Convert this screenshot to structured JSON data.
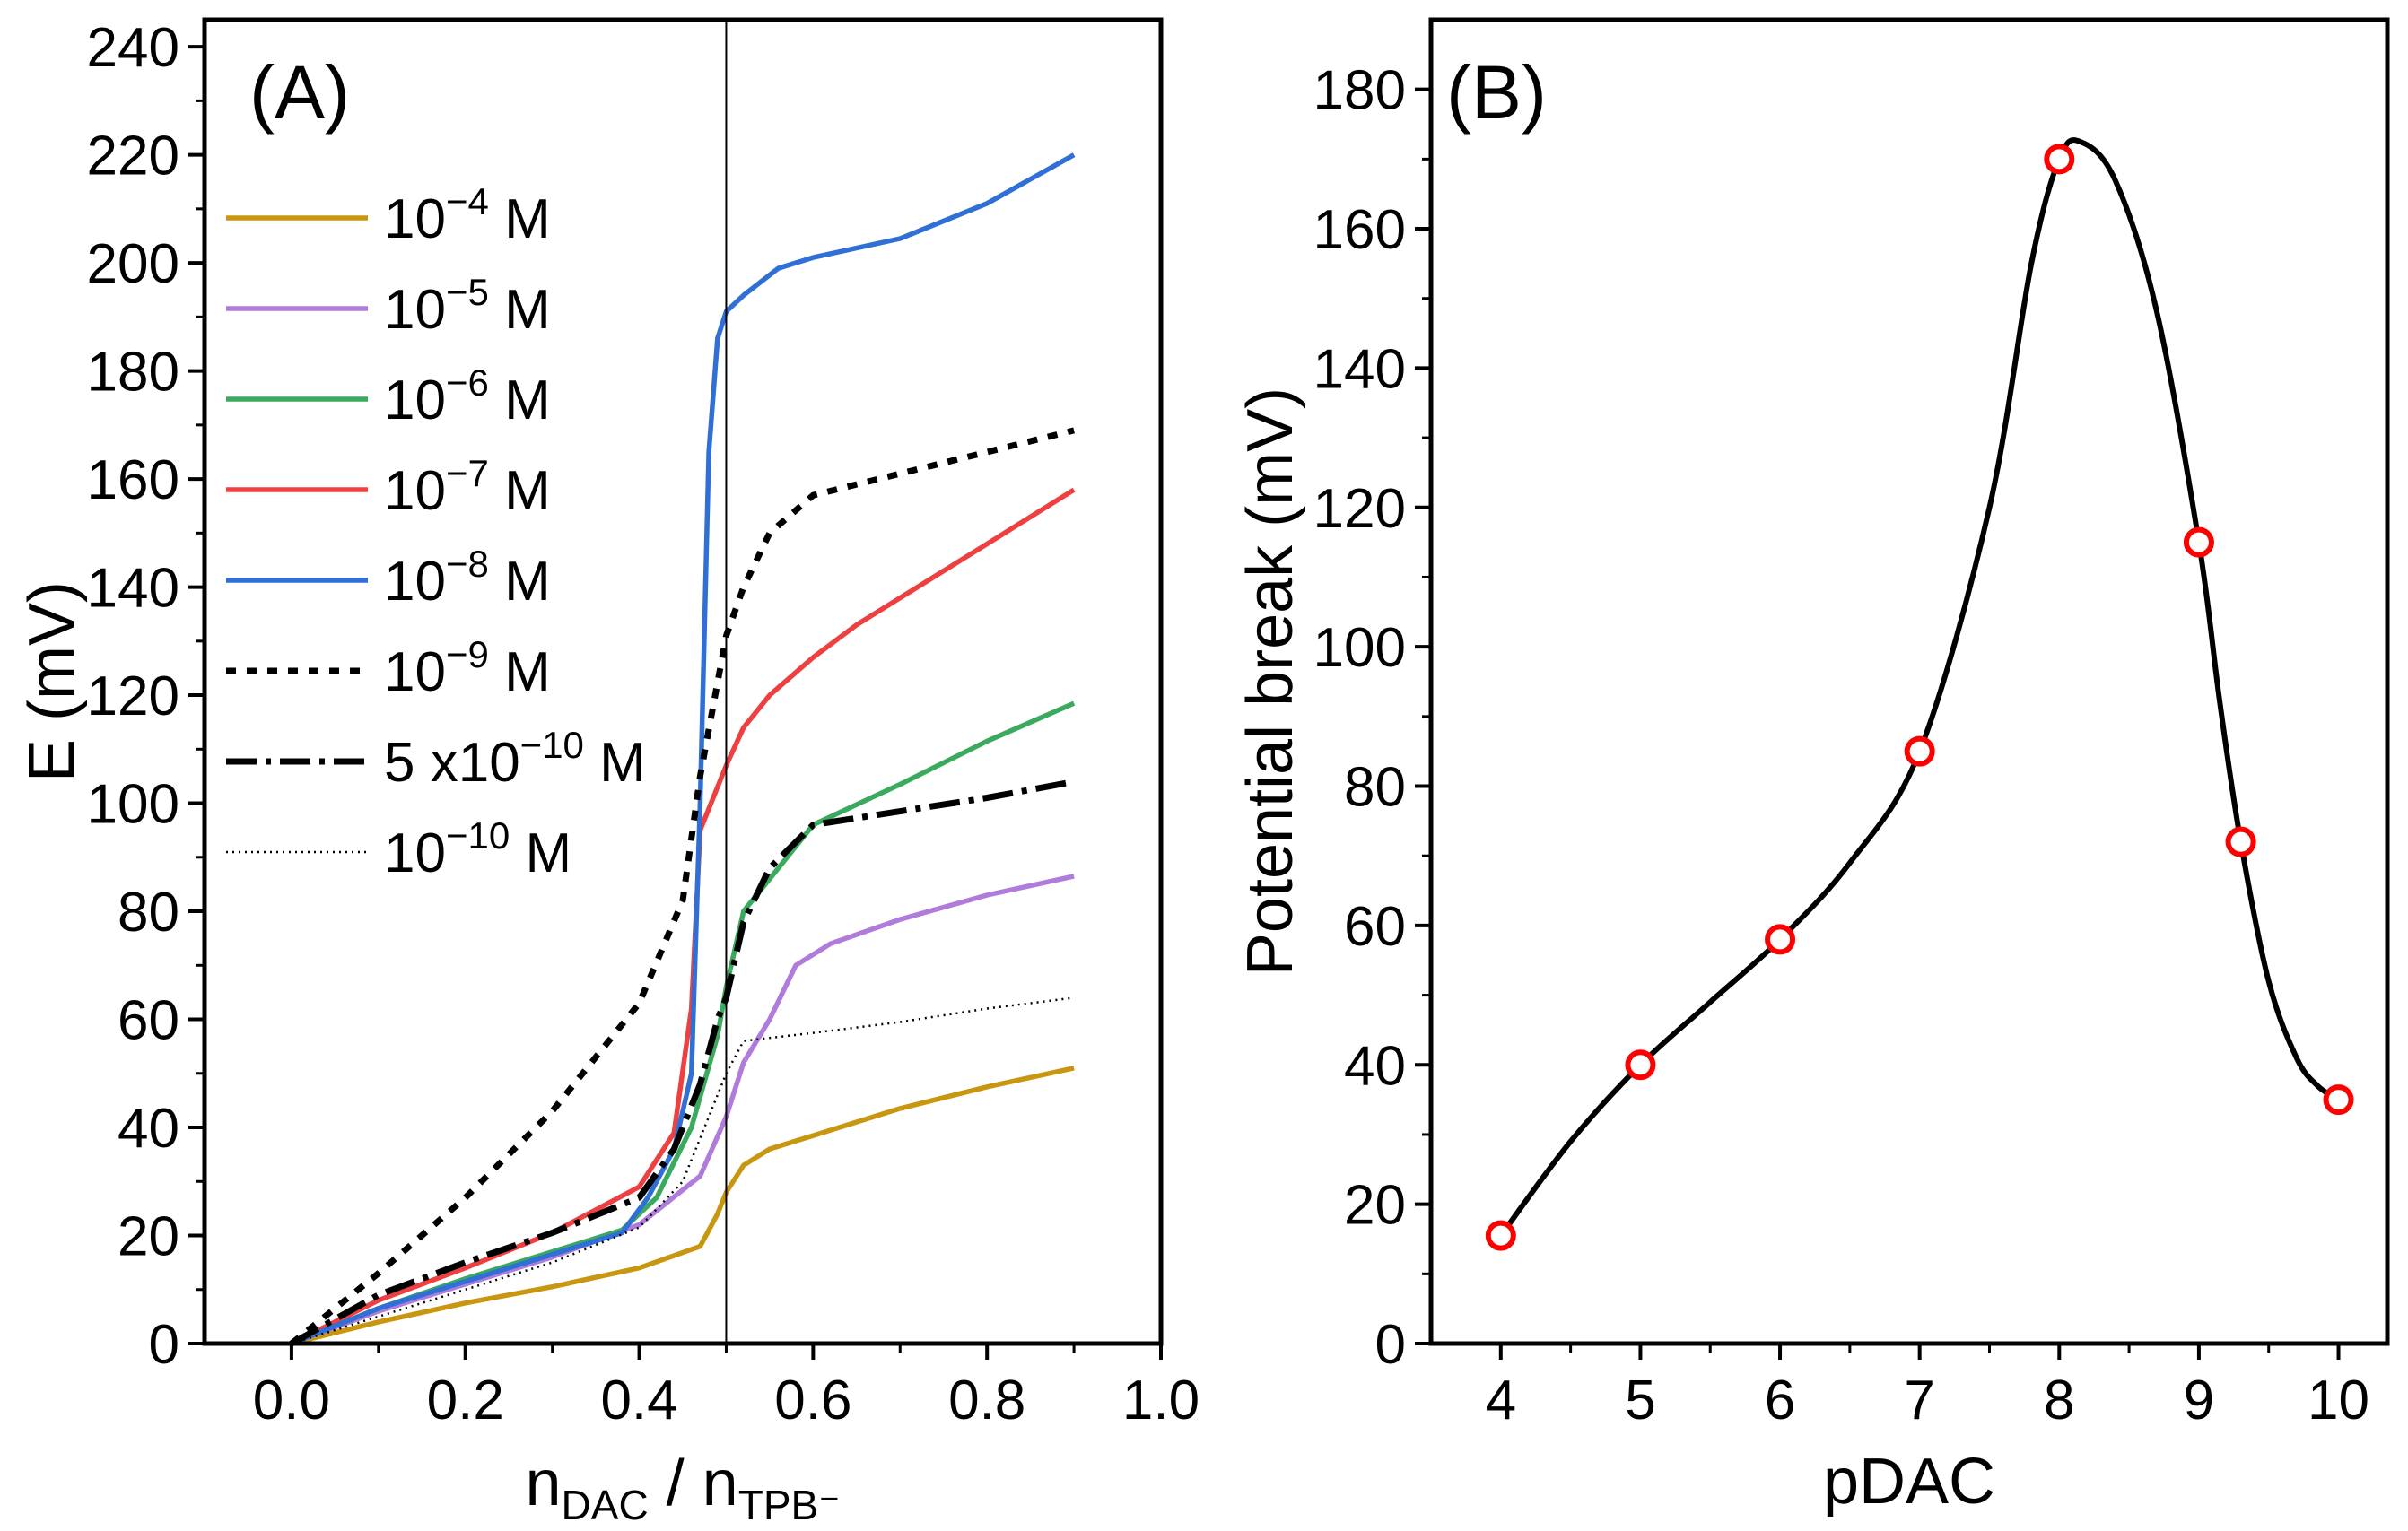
{
  "chart_data": [
    {
      "type": "line",
      "panel_label": "(A)",
      "xlabel": {
        "main": "n",
        "sub1": "DAC",
        "sep": " / n",
        "sub2": "TPB⁻"
      },
      "ylabel": "E (mV)",
      "xlim": [
        -0.1,
        1.0
      ],
      "ylim": [
        0,
        245
      ],
      "xticks": [
        "0.0",
        "0.2",
        "0.4",
        "0.6",
        "0.8",
        "1.0"
      ],
      "yticks": [
        "0",
        "20",
        "40",
        "60",
        "80",
        "100",
        "120",
        "140",
        "160",
        "180",
        "200",
        "220",
        "240"
      ],
      "reference_line_x": 0.5,
      "legend_position": "top-left",
      "series": [
        {
          "name": "10⁻⁴ M",
          "base": "10",
          "exp": "−4",
          "unit": " M",
          "color": "#C8960F",
          "style": "solid",
          "points": [
            [
              0,
              0
            ],
            [
              0.1,
              4
            ],
            [
              0.2,
              7.5
            ],
            [
              0.3,
              10.5
            ],
            [
              0.4,
              14
            ],
            [
              0.47,
              18
            ],
            [
              0.49,
              24
            ],
            [
              0.5,
              28
            ],
            [
              0.52,
              33
            ],
            [
              0.55,
              36
            ],
            [
              0.6,
              38.5
            ],
            [
              0.7,
              43.5
            ],
            [
              0.8,
              47.5
            ],
            [
              0.9,
              51
            ]
          ]
        },
        {
          "name": "10⁻⁵ M",
          "base": "10",
          "exp": "−5",
          "unit": " M",
          "color": "#B07CDC",
          "style": "solid",
          "points": [
            [
              0,
              0
            ],
            [
              0.1,
              6
            ],
            [
              0.2,
              11
            ],
            [
              0.3,
              16
            ],
            [
              0.4,
              22
            ],
            [
              0.47,
              31
            ],
            [
              0.5,
              42
            ],
            [
              0.52,
              52
            ],
            [
              0.55,
              60
            ],
            [
              0.58,
              70
            ],
            [
              0.62,
              74
            ],
            [
              0.7,
              78.5
            ],
            [
              0.8,
              83
            ],
            [
              0.9,
              86.5
            ]
          ]
        },
        {
          "name": "10⁻⁶ M",
          "base": "10",
          "exp": "−6",
          "unit": " M",
          "color": "#3AAA5E",
          "style": "solid",
          "points": [
            [
              0,
              0
            ],
            [
              0.1,
              6.5
            ],
            [
              0.2,
              12
            ],
            [
              0.3,
              17
            ],
            [
              0.38,
              21
            ],
            [
              0.42,
              27
            ],
            [
              0.46,
              40
            ],
            [
              0.49,
              57
            ],
            [
              0.5,
              66
            ],
            [
              0.52,
              80
            ],
            [
              0.55,
              86
            ],
            [
              0.6,
              96
            ],
            [
              0.7,
              103.5
            ],
            [
              0.8,
              111.5
            ],
            [
              0.9,
              118.5
            ]
          ]
        },
        {
          "name": "10⁻⁷ M",
          "base": "10",
          "exp": "−7",
          "unit": " M",
          "color": "#EE4040",
          "style": "solid",
          "points": [
            [
              0,
              0
            ],
            [
              0.1,
              8
            ],
            [
              0.2,
              14
            ],
            [
              0.3,
              20.5
            ],
            [
              0.4,
              29
            ],
            [
              0.44,
              39
            ],
            [
              0.46,
              62
            ],
            [
              0.47,
              95
            ],
            [
              0.49,
              103
            ],
            [
              0.5,
              107
            ],
            [
              0.52,
              114
            ],
            [
              0.55,
              120
            ],
            [
              0.6,
              127
            ],
            [
              0.65,
              133
            ],
            [
              0.7,
              138
            ],
            [
              0.8,
              148
            ],
            [
              0.9,
              158
            ]
          ]
        },
        {
          "name": "10⁻⁸ M",
          "base": "10",
          "exp": "−8",
          "unit": " M",
          "color": "#2F6FD6",
          "style": "solid",
          "points": [
            [
              0,
              0
            ],
            [
              0.1,
              6.5
            ],
            [
              0.2,
              11.5
            ],
            [
              0.3,
              16.5
            ],
            [
              0.38,
              20.5
            ],
            [
              0.41,
              27
            ],
            [
              0.44,
              36
            ],
            [
              0.46,
              50
            ],
            [
              0.47,
              100
            ],
            [
              0.48,
              165
            ],
            [
              0.49,
              186
            ],
            [
              0.5,
              191
            ],
            [
              0.52,
              194
            ],
            [
              0.56,
              199
            ],
            [
              0.6,
              201
            ],
            [
              0.7,
              204.5
            ],
            [
              0.8,
              211
            ],
            [
              0.9,
              220
            ]
          ]
        },
        {
          "name": "10⁻⁹ M",
          "base": "10",
          "exp": "−9",
          "unit": " M",
          "color": "#000000",
          "style": "dotted",
          "points": [
            [
              0,
              0
            ],
            [
              0.1,
              13
            ],
            [
              0.2,
              27
            ],
            [
              0.3,
              43
            ],
            [
              0.4,
              63
            ],
            [
              0.45,
              82
            ],
            [
              0.47,
              105
            ],
            [
              0.5,
              131
            ],
            [
              0.52,
              140
            ],
            [
              0.55,
              150
            ],
            [
              0.6,
              157
            ],
            [
              0.7,
              161
            ],
            [
              0.8,
              165
            ],
            [
              0.9,
              169
            ]
          ]
        },
        {
          "name": "5 x10⁻¹⁰ M",
          "base": "5 x10",
          "exp": "−10",
          "unit": " M",
          "color": "#000000",
          "style": "dashdot",
          "points": [
            [
              0,
              0
            ],
            [
              0.1,
              9
            ],
            [
              0.2,
              15
            ],
            [
              0.3,
              20.5
            ],
            [
              0.4,
              27
            ],
            [
              0.44,
              36
            ],
            [
              0.47,
              48
            ],
            [
              0.49,
              60
            ],
            [
              0.5,
              64
            ],
            [
              0.52,
              78
            ],
            [
              0.55,
              88
            ],
            [
              0.6,
              96
            ],
            [
              0.7,
              98.5
            ],
            [
              0.8,
              101
            ],
            [
              0.9,
              104
            ]
          ]
        },
        {
          "name": "10⁻¹⁰ M",
          "base": "10",
          "exp": "−10",
          "unit": " M",
          "color": "#000000",
          "style": "fine-dot",
          "points": [
            [
              0,
              0
            ],
            [
              0.1,
              5
            ],
            [
              0.2,
              10
            ],
            [
              0.3,
              15
            ],
            [
              0.4,
              21.5
            ],
            [
              0.45,
              30
            ],
            [
              0.5,
              50
            ],
            [
              0.52,
              56
            ],
            [
              0.6,
              57.5
            ],
            [
              0.7,
              59.5
            ],
            [
              0.8,
              62
            ],
            [
              0.9,
              64
            ]
          ]
        }
      ]
    },
    {
      "type": "scatter",
      "panel_label": "(B)",
      "xlabel": "pDAC",
      "ylabel": "Potential break (mV)",
      "xlim": [
        3.5,
        10.35
      ],
      "ylim": [
        0,
        190
      ],
      "xticks": [
        "4",
        "5",
        "6",
        "7",
        "8",
        "9",
        "10"
      ],
      "yticks": [
        "0",
        "20",
        "40",
        "60",
        "80",
        "100",
        "120",
        "140",
        "160",
        "180"
      ],
      "marker": "open-circle",
      "marker_color": "#FF0000",
      "curve_color": "#000000",
      "points": [
        [
          4,
          15.5
        ],
        [
          5,
          40
        ],
        [
          6,
          58
        ],
        [
          7,
          85
        ],
        [
          8,
          170
        ],
        [
          9,
          115
        ],
        [
          9.3,
          72
        ],
        [
          10,
          35
        ]
      ],
      "fit_curve": [
        [
          4,
          15.5
        ],
        [
          4.5,
          29
        ],
        [
          5,
          40
        ],
        [
          5.5,
          49
        ],
        [
          6,
          58
        ],
        [
          6.5,
          69
        ],
        [
          7,
          85
        ],
        [
          7.5,
          120
        ],
        [
          7.8,
          155
        ],
        [
          8,
          170
        ],
        [
          8.15,
          172.5
        ],
        [
          8.4,
          167
        ],
        [
          8.7,
          148
        ],
        [
          9,
          115
        ],
        [
          9.15,
          92
        ],
        [
          9.3,
          72
        ],
        [
          9.5,
          52
        ],
        [
          9.7,
          41
        ],
        [
          9.85,
          37
        ],
        [
          10,
          35
        ]
      ]
    }
  ]
}
